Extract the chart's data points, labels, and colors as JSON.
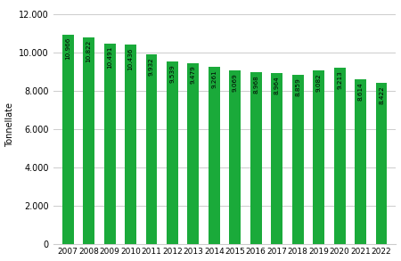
{
  "years": [
    2007,
    2008,
    2009,
    2010,
    2011,
    2012,
    2013,
    2014,
    2015,
    2016,
    2017,
    2018,
    2019,
    2020,
    2021,
    2022
  ],
  "values": [
    10966,
    10822,
    10491,
    10436,
    9932,
    9539,
    9479,
    9261,
    9069,
    8968,
    8964,
    8859,
    9082,
    9213,
    8614,
    8422
  ],
  "labels": [
    "10.966",
    "10.822",
    "10.491",
    "10.436",
    "9.932",
    "9.539",
    "9.479",
    "9.261",
    "9.069",
    "8.968",
    "8.964",
    "8.859",
    "9.082",
    "9.213",
    "8.614",
    "8.422"
  ],
  "bar_color": "#1aaa3a",
  "ylabel": "Tonnellate",
  "yticks": [
    0,
    2000,
    4000,
    6000,
    8000,
    10000,
    12000
  ],
  "ytick_labels": [
    "0",
    "2.000",
    "4.000",
    "6.000",
    "8.000",
    "10.000",
    "12.000"
  ],
  "ylim": [
    0,
    12500
  ],
  "background_color": "#ffffff",
  "grid_color": "#cccccc"
}
